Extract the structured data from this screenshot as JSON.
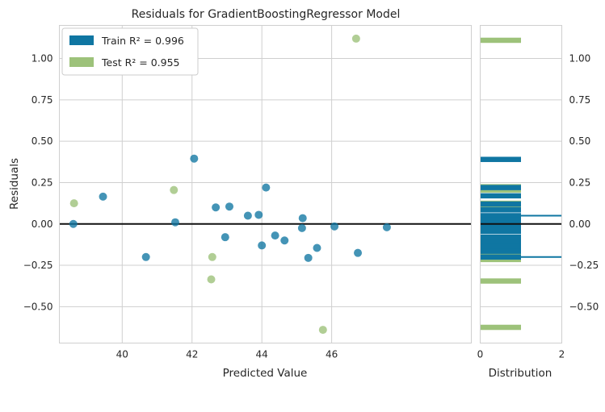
{
  "chart_data": {
    "type": "scatter",
    "title": "Residuals for GradientBoostingRegressor Model",
    "xlabel": "Predicted Value",
    "ylabel": "Residuals",
    "xlim": [
      38.2,
      50.0
    ],
    "ylim": [
      -0.72,
      1.2
    ],
    "xticks": [
      40,
      42,
      44,
      46
    ],
    "xtick_labels": [
      "40",
      "42",
      "44",
      "46"
    ],
    "yticks": [
      -0.5,
      -0.25,
      0.0,
      0.25,
      0.5,
      0.75,
      1.0
    ],
    "ytick_labels": [
      "−0.50",
      "−0.25",
      "0.00",
      "0.25",
      "0.50",
      "0.75",
      "1.00"
    ],
    "grid": true,
    "legend_placement": "top-left",
    "colors": {
      "train": "#0f76a2",
      "test": "#9dc27a",
      "zero_line": "#111111",
      "grid": "#cfcfcf"
    },
    "series": [
      {
        "name": "Train",
        "legend_label": "Train R² = 0.996",
        "points": [
          {
            "x": 38.6,
            "y": 0.0
          },
          {
            "x": 39.45,
            "y": 0.165
          },
          {
            "x": 40.68,
            "y": -0.2
          },
          {
            "x": 41.52,
            "y": 0.01
          },
          {
            "x": 42.06,
            "y": 0.395
          },
          {
            "x": 42.68,
            "y": 0.1
          },
          {
            "x": 42.95,
            "y": -0.08
          },
          {
            "x": 43.07,
            "y": 0.105
          },
          {
            "x": 43.6,
            "y": 0.05
          },
          {
            "x": 43.91,
            "y": 0.055
          },
          {
            "x": 44.0,
            "y": -0.13
          },
          {
            "x": 44.12,
            "y": 0.22
          },
          {
            "x": 44.38,
            "y": -0.07
          },
          {
            "x": 44.65,
            "y": -0.1
          },
          {
            "x": 45.15,
            "y": -0.025
          },
          {
            "x": 45.17,
            "y": 0.035
          },
          {
            "x": 45.33,
            "y": -0.205
          },
          {
            "x": 45.58,
            "y": -0.145
          },
          {
            "x": 46.08,
            "y": -0.015
          },
          {
            "x": 46.75,
            "y": -0.175
          },
          {
            "x": 47.58,
            "y": -0.02
          }
        ]
      },
      {
        "name": "Test",
        "legend_label": "Test R² = 0.955",
        "points": [
          {
            "x": 38.62,
            "y": 0.125
          },
          {
            "x": 41.48,
            "y": 0.205
          },
          {
            "x": 42.58,
            "y": -0.2
          },
          {
            "x": 42.55,
            "y": -0.335
          },
          {
            "x": 45.75,
            "y": -0.64
          },
          {
            "x": 46.7,
            "y": 1.12
          }
        ]
      }
    ],
    "distribution": {
      "xlabel": "Distribution",
      "xlim": [
        0,
        2
      ],
      "xticks": [
        0,
        2
      ],
      "xtick_labels": [
        "0",
        "2"
      ],
      "train_bars": [
        {
          "y": 0.39,
          "count": 1
        },
        {
          "y": 0.22,
          "count": 1
        },
        {
          "y": 0.17,
          "count": 1
        },
        {
          "y": 0.12,
          "count": 1
        },
        {
          "y": 0.085,
          "count": 1
        },
        {
          "y": 0.05,
          "count": 1
        },
        {
          "y": 0.025,
          "count": 1
        },
        {
          "y": 0.0,
          "count": 1
        },
        {
          "y": -0.02,
          "count": 1
        },
        {
          "y": -0.045,
          "count": 1
        },
        {
          "y": -0.08,
          "count": 1
        },
        {
          "y": -0.105,
          "count": 1
        },
        {
          "y": -0.135,
          "count": 1
        },
        {
          "y": -0.165,
          "count": 1
        },
        {
          "y": -0.2,
          "count": 1
        }
      ],
      "test_bars": [
        {
          "y": 1.11,
          "count": 1
        },
        {
          "y": 0.225,
          "count": 1
        },
        {
          "y": 0.205,
          "count": 1
        },
        {
          "y": 0.125,
          "count": 1
        },
        {
          "y": 0.105,
          "count": 1
        },
        {
          "y": -0.195,
          "count": 1
        },
        {
          "y": -0.215,
          "count": 1
        },
        {
          "y": -0.345,
          "count": 1
        },
        {
          "y": -0.625,
          "count": 1
        }
      ],
      "kde_spikes": [
        {
          "y": 0.05,
          "length": 2.0
        },
        {
          "y": -0.2,
          "length": 2.0
        }
      ]
    }
  }
}
